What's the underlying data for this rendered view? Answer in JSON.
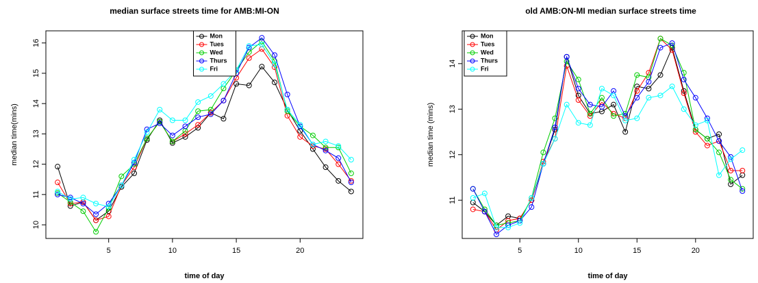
{
  "chart_data": [
    {
      "type": "line",
      "title": "median surface streets time for AMB:MI-ON",
      "x_label": "time of day",
      "y_label": "median time(mins)",
      "x": [
        1,
        2,
        3,
        4,
        5,
        6,
        7,
        8,
        9,
        10,
        11,
        12,
        13,
        14,
        15,
        16,
        17,
        18,
        19,
        20,
        21,
        22,
        23,
        24
      ],
      "xlim": [
        0.08,
        24.92
      ],
      "ylim": [
        9.55,
        16.4
      ],
      "xticks": [
        5,
        10,
        15,
        20
      ],
      "yticks": [
        10,
        11,
        12,
        13,
        14,
        15,
        16
      ],
      "legend": "top",
      "series": [
        {
          "name": "Mon",
          "color": "#000000",
          "values": [
            11.92,
            10.62,
            10.75,
            10.15,
            10.45,
            11.25,
            11.7,
            12.8,
            13.45,
            12.7,
            12.9,
            13.2,
            13.7,
            13.5,
            14.65,
            14.6,
            15.22,
            14.7,
            13.8,
            13.1,
            12.5,
            11.9,
            11.45,
            11.1
          ]
        },
        {
          "name": "Tues",
          "color": "#ff0000",
          "values": [
            11.4,
            10.7,
            10.75,
            10.15,
            10.28,
            11.3,
            11.9,
            12.85,
            13.4,
            12.75,
            13.0,
            13.3,
            13.7,
            14.1,
            14.85,
            15.5,
            15.8,
            15.2,
            13.6,
            12.9,
            12.6,
            12.5,
            12.0,
            11.45
          ]
        },
        {
          "name": "Wed",
          "color": "#00cd00",
          "values": [
            11.05,
            10.75,
            10.45,
            9.77,
            10.55,
            11.6,
            12.0,
            12.85,
            13.4,
            12.75,
            13.1,
            13.75,
            13.8,
            14.5,
            15.1,
            15.7,
            16.05,
            15.4,
            13.75,
            13.25,
            12.95,
            12.55,
            12.55,
            11.7
          ]
        },
        {
          "name": "Thurs",
          "color": "#0000ff",
          "values": [
            11.0,
            10.9,
            10.7,
            10.35,
            10.7,
            11.3,
            12.05,
            13.15,
            13.35,
            12.95,
            13.25,
            13.55,
            13.65,
            14.1,
            15.0,
            15.85,
            16.17,
            15.6,
            14.3,
            13.25,
            12.65,
            12.45,
            12.2,
            11.4
          ]
        },
        {
          "name": "Fri",
          "color": "#00ffff",
          "values": [
            11.1,
            10.85,
            10.9,
            10.7,
            10.6,
            11.3,
            12.15,
            13.05,
            13.8,
            13.45,
            13.45,
            14.05,
            14.25,
            14.65,
            15.1,
            15.9,
            15.95,
            15.3,
            13.8,
            13.3,
            12.65,
            12.75,
            12.6,
            12.15
          ]
        }
      ]
    },
    {
      "type": "line",
      "title": "old AMB:ON-MI median surface streets time",
      "x_label": "time of day",
      "y_label": "median time (mins)",
      "x": [
        1,
        2,
        3,
        4,
        5,
        6,
        7,
        8,
        9,
        10,
        11,
        12,
        13,
        14,
        15,
        16,
        17,
        18,
        19,
        20,
        21,
        22,
        23,
        24
      ],
      "xlim": [
        0.08,
        24.92
      ],
      "ylim": [
        10.16,
        14.72
      ],
      "xticks": [
        5,
        10,
        15,
        20
      ],
      "yticks": [
        11,
        12,
        13,
        14
      ],
      "legend": "topleft",
      "series": [
        {
          "name": "Mon",
          "color": "#000000",
          "values": [
            10.95,
            10.75,
            10.45,
            10.65,
            10.6,
            11.0,
            11.8,
            12.55,
            14.15,
            13.3,
            12.9,
            12.95,
            13.1,
            12.5,
            13.5,
            13.45,
            13.75,
            14.35,
            13.4,
            12.55,
            12.35,
            12.45,
            11.35,
            11.55
          ]
        },
        {
          "name": "Tues",
          "color": "#ff0000",
          "values": [
            10.8,
            10.75,
            10.35,
            10.55,
            10.6,
            11.0,
            11.85,
            12.35,
            13.95,
            13.2,
            12.85,
            13.15,
            12.9,
            12.8,
            13.4,
            13.8,
            14.55,
            14.3,
            13.35,
            12.5,
            12.2,
            12.3,
            11.65,
            11.65
          ]
        },
        {
          "name": "Wed",
          "color": "#00cd00",
          "values": [
            11.25,
            10.8,
            10.45,
            10.5,
            10.55,
            11.05,
            12.05,
            12.8,
            14.05,
            13.65,
            12.9,
            13.25,
            12.85,
            12.9,
            13.75,
            13.7,
            14.55,
            14.4,
            13.8,
            12.55,
            12.35,
            12.05,
            11.45,
            11.25
          ]
        },
        {
          "name": "Thurs",
          "color": "#0000ff",
          "values": [
            11.25,
            10.75,
            10.25,
            10.45,
            10.55,
            10.85,
            11.8,
            12.6,
            14.15,
            13.45,
            13.1,
            13.05,
            13.4,
            12.85,
            13.25,
            13.6,
            14.35,
            14.45,
            13.65,
            13.25,
            12.8,
            12.3,
            11.95,
            11.2
          ]
        },
        {
          "name": "Fri",
          "color": "#00ffff",
          "values": [
            11.05,
            11.15,
            10.4,
            10.4,
            10.5,
            11.05,
            11.8,
            12.35,
            13.1,
            12.7,
            12.65,
            13.45,
            13.3,
            12.75,
            12.8,
            13.25,
            13.3,
            13.5,
            13.0,
            12.65,
            12.75,
            11.55,
            11.9,
            12.1
          ]
        }
      ]
    }
  ]
}
